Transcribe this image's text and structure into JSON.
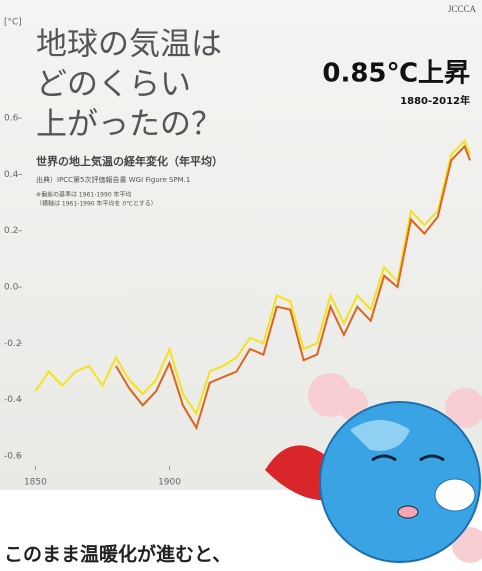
{
  "chart_data": {
    "type": "line",
    "title_lines": [
      "地球の気温は",
      "どのくらい",
      "上がったの？"
    ],
    "headline": "0.85℃上昇",
    "headline_period": "1880-2012年",
    "subtitle": "世界の地上気温の経年変化（年平均）",
    "source": "出典）IPCC第5次評価報告書 WGI Figure SPM.1",
    "notes": [
      "※偏差の基準は 1961-1990 年平均",
      "（横軸は 1961-1990 年平均を 0℃とする）"
    ],
    "y_unit": "[°C]",
    "logo": "JCCCA",
    "caption": "このまま温暖化が進むと、",
    "x": [
      1850,
      1855,
      1860,
      1865,
      1870,
      1875,
      1880,
      1885,
      1890,
      1895,
      1900,
      1905,
      1910,
      1915,
      1920,
      1925,
      1930,
      1935,
      1940,
      1945,
      1950,
      1955,
      1960,
      1965,
      1970,
      1975,
      1980,
      1985,
      1990,
      1995,
      2000,
      2005,
      2010,
      2012
    ],
    "series": [
      {
        "name": "yellow",
        "color": "#f3e21c",
        "values": [
          -0.37,
          -0.3,
          -0.35,
          -0.3,
          -0.28,
          -0.35,
          -0.25,
          -0.33,
          -0.38,
          -0.33,
          -0.22,
          -0.38,
          -0.45,
          -0.3,
          -0.28,
          -0.25,
          -0.18,
          -0.2,
          -0.03,
          -0.05,
          -0.22,
          -0.2,
          -0.03,
          -0.13,
          -0.03,
          -0.08,
          0.07,
          0.02,
          0.27,
          0.22,
          0.27,
          0.47,
          0.52,
          0.47
        ]
      },
      {
        "name": "orange",
        "color": "#e0631c",
        "values": [
          null,
          null,
          null,
          null,
          null,
          null,
          -0.28,
          -0.36,
          -0.42,
          -0.37,
          -0.27,
          -0.42,
          -0.5,
          -0.34,
          -0.32,
          -0.3,
          -0.22,
          -0.24,
          -0.07,
          -0.08,
          -0.26,
          -0.24,
          -0.07,
          -0.17,
          -0.07,
          -0.12,
          0.04,
          0.0,
          0.24,
          0.19,
          0.25,
          0.45,
          0.5,
          0.45
        ]
      }
    ],
    "xlim": [
      1845,
      2015
    ],
    "xticks": [
      1850,
      1900
    ],
    "ylim": [
      -0.65,
      0.7
    ],
    "yticks": [
      -0.6,
      -0.4,
      -0.2,
      {
        "value": 0,
        "label": "0.0"
      },
      0.2,
      0.4,
      0.6
    ]
  }
}
